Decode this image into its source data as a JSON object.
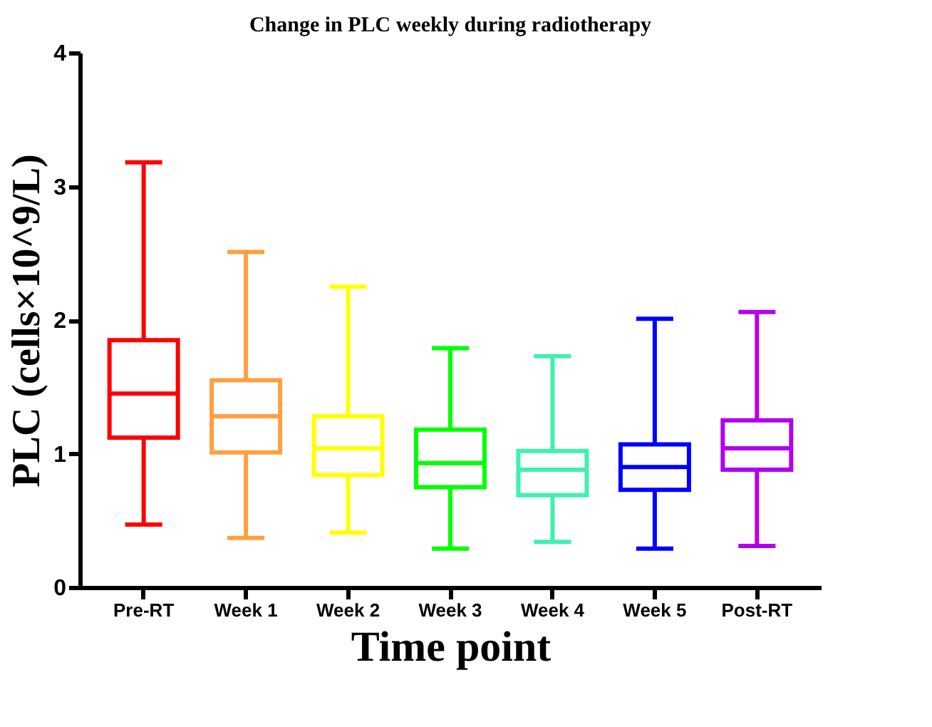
{
  "chart_data": {
    "type": "box",
    "title": "Change in PLC weekly during radiotherapy",
    "xlabel": "Time point",
    "ylabel": "PLC (cells×10^9/L)",
    "categories": [
      "Pre-RT",
      "Week 1",
      "Week 2",
      "Week 3",
      "Week 4",
      "Week 5",
      "Post-RT"
    ],
    "colors": [
      "#ff0000",
      "#ffa040",
      "#ffff00",
      "#00ff00",
      "#40f0b0",
      "#0000ff",
      "#b000f0"
    ],
    "boxes": [
      {
        "low": 0.47,
        "q1": 1.12,
        "median": 1.45,
        "q3": 1.85,
        "high": 3.18
      },
      {
        "low": 0.37,
        "q1": 1.01,
        "median": 1.28,
        "q3": 1.55,
        "high": 2.51
      },
      {
        "low": 0.41,
        "q1": 0.84,
        "median": 1.04,
        "q3": 1.28,
        "high": 2.25
      },
      {
        "low": 0.29,
        "q1": 0.75,
        "median": 0.93,
        "q3": 1.18,
        "high": 1.79
      },
      {
        "low": 0.34,
        "q1": 0.69,
        "median": 0.88,
        "q3": 1.02,
        "high": 1.73
      },
      {
        "low": 0.29,
        "q1": 0.73,
        "median": 0.9,
        "q3": 1.07,
        "high": 2.01
      },
      {
        "low": 0.31,
        "q1": 0.88,
        "median": 1.04,
        "q3": 1.25,
        "high": 2.06
      }
    ],
    "ylim": [
      0,
      4
    ],
    "yticks": [
      0,
      1,
      2,
      3,
      4
    ],
    "grid": false,
    "legend": false
  }
}
